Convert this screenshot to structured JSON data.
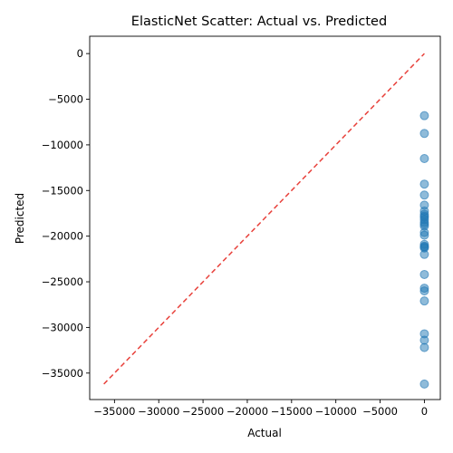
{
  "chart_data": {
    "type": "scatter",
    "title": "ElasticNet Scatter: Actual vs. Predicted",
    "xlabel": "Actual",
    "ylabel": "Predicted",
    "xlim": [
      -37800,
      1800
    ],
    "ylim": [
      -37900,
      1900
    ],
    "xticks": [
      -35000,
      -30000,
      -25000,
      -20000,
      -15000,
      -10000,
      -5000,
      0
    ],
    "xtick_labels": [
      "−35000",
      "−30000",
      "−25000",
      "−20000",
      "−15000",
      "−10000",
      "−5000",
      "0"
    ],
    "yticks": [
      0,
      -5000,
      -10000,
      -15000,
      -20000,
      -25000,
      -30000,
      -35000
    ],
    "ytick_labels": [
      "0",
      "−5000",
      "−10000",
      "−15000",
      "−20000",
      "−25000",
      "−30000",
      "−35000"
    ],
    "grid": false,
    "legend": false,
    "series": [
      {
        "marker_color": "#1f77b4",
        "x": [
          0,
          0,
          0,
          0,
          0,
          0,
          0,
          0,
          0,
          0,
          0,
          0,
          0,
          0,
          0,
          0,
          0,
          0,
          0,
          0,
          0,
          0,
          0,
          0,
          0,
          0,
          0,
          0,
          0
        ],
        "y": [
          -6800,
          -8750,
          -11500,
          -14300,
          -15500,
          -16600,
          -17250,
          -17600,
          -17950,
          -18200,
          -18500,
          -18900,
          -19600,
          -19900,
          -20900,
          -21200,
          -21300,
          -22000,
          -24200,
          -25700,
          -26000,
          -27100,
          -30700,
          -31400,
          -32200,
          -36200,
          -17800,
          -18700,
          -21100
        ]
      }
    ],
    "reference_line": {
      "label": "",
      "color": "#e8413b",
      "x": [
        -36200,
        0
      ],
      "y": [
        -36200,
        0
      ]
    }
  }
}
